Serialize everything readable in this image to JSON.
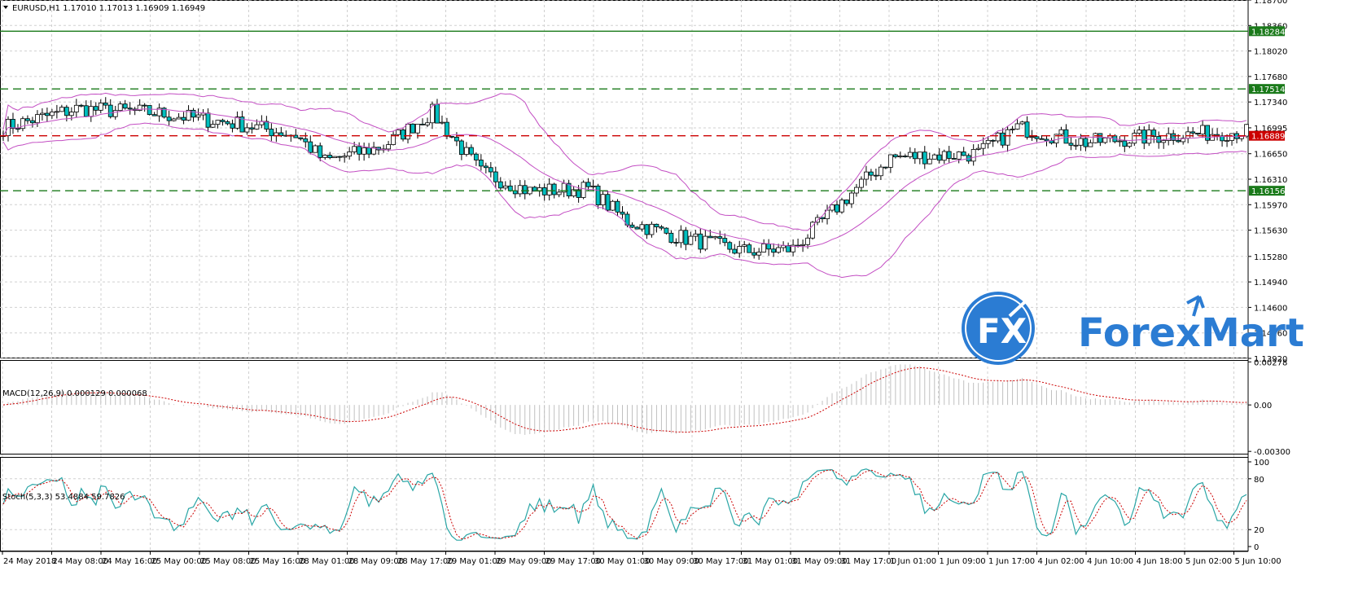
{
  "main_chart": {
    "header": "EURUSD,H1  1.17010 1.17013 1.16909 1.16949",
    "price_range": [
      1.1392,
      1.187
    ],
    "price_ticks": [
      "1.18700",
      "1.18360",
      "1.18020",
      "1.17680",
      "1.17340",
      "1.16995",
      "1.16650",
      "1.16310",
      "1.15970",
      "1.15630",
      "1.15280",
      "1.14940",
      "1.14600",
      "1.14260",
      "1.13920"
    ],
    "levels": [
      {
        "price": 1.18284,
        "label": "1.18284",
        "style": "solid",
        "color": "#1a7a1a"
      },
      {
        "price": 1.17514,
        "label": "1.17514",
        "style": "dashed",
        "color": "#1a7a1a"
      },
      {
        "price": 1.16889,
        "label": "1.16889",
        "style": "dashed",
        "color": "#cc0000"
      },
      {
        "price": 1.16156,
        "label": "1.16156",
        "style": "dashed",
        "color": "#1a7a1a"
      }
    ],
    "colors": {
      "bull": "#ffffff",
      "bear": "#00bfbf",
      "wick": "#000000",
      "bands": "#c34ec3"
    }
  },
  "macd": {
    "label": "MACD(12,26,9) 0.000129 0.000068",
    "range": [
      -0.0032,
      0.0029
    ],
    "ticks": [
      "0.00278",
      "0.00",
      "-0.00300"
    ],
    "colors": {
      "histogram": "#c0c0c0",
      "signal": "#cc0000"
    }
  },
  "stoch": {
    "label": "Stoch(5,3,3) 53.4884 59.7826",
    "ticks": [
      "100",
      "80",
      "20",
      "0"
    ],
    "colors": {
      "main": "#2aa6a6",
      "signal": "#cc0000"
    }
  },
  "time_axis": [
    "24 May 2018",
    "24 May 08:00",
    "24 May 16:00",
    "25 May 00:00",
    "25 May 08:00",
    "25 May 16:00",
    "28 May 01:00",
    "28 May 09:00",
    "28 May 17:00",
    "29 May 01:00",
    "29 May 09:00",
    "29 May 17:00",
    "30 May 01:00",
    "30 May 09:00",
    "30 May 17:00",
    "31 May 01:00",
    "31 May 09:00",
    "31 May 17:00",
    "1 Jun 01:00",
    "1 Jun 09:00",
    "1 Jun 17:00",
    "4 Jun 02:00",
    "4 Jun 10:00",
    "4 Jun 18:00",
    "5 Jun 02:00",
    "5 Jun 10:00"
  ],
  "logo": {
    "brand": "ForexMart",
    "mark": "FX"
  }
}
